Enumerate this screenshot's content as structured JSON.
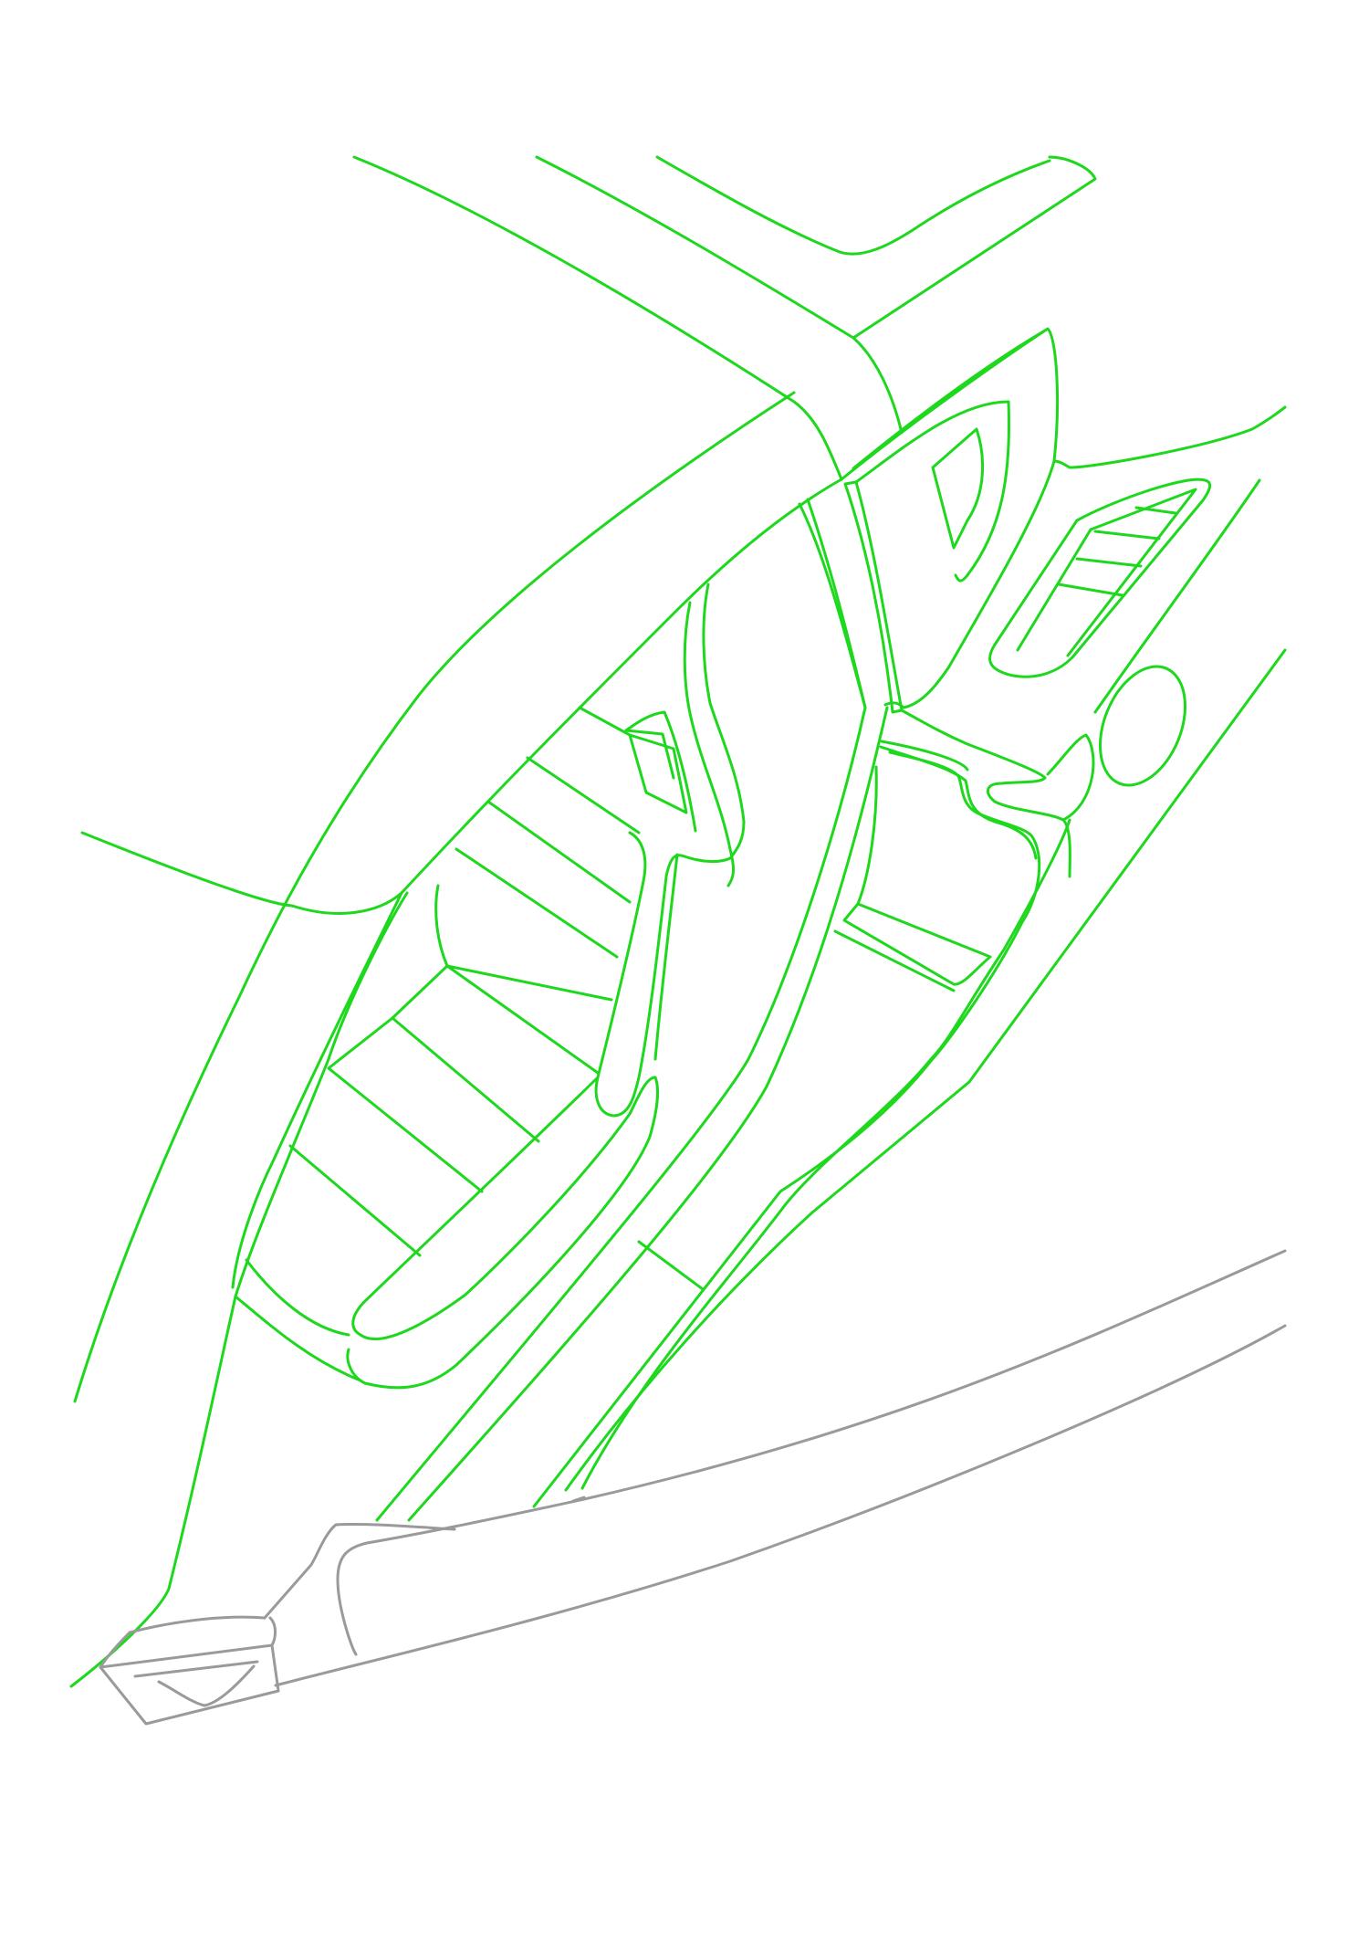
{
  "drawing": {
    "subject": "car-interior-line-sketch",
    "colors": {
      "background": "#ffffff",
      "primary_line": "#1ed81e",
      "secondary_line": "#9a9a9a"
    }
  }
}
